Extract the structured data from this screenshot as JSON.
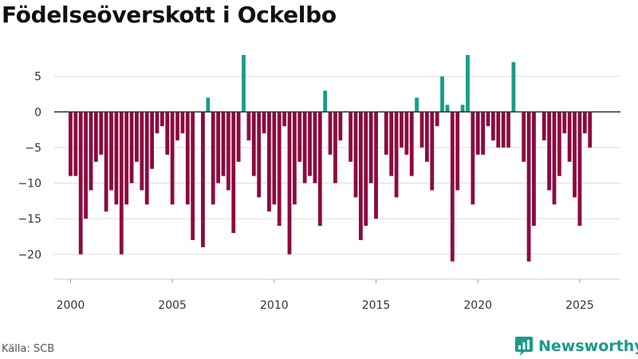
{
  "chart_data": {
    "type": "bar",
    "title": "Födelseöverskott i Ockelbo",
    "source": "Källa: SCB",
    "brand": "Newsworthy",
    "xlabel": "",
    "ylabel": "",
    "ylim": [
      -23.5,
      9
    ],
    "xlim": [
      1999.2,
      2027
    ],
    "yticks": [
      5,
      0,
      -5,
      -10,
      -15,
      -20
    ],
    "ytick_labels": [
      "5",
      "0",
      "−5",
      "−10",
      "−15",
      "−20"
    ],
    "xticks": [
      2000,
      2005,
      2010,
      2015,
      2020,
      2025
    ],
    "xtick_labels": [
      "2000",
      "2005",
      "2010",
      "2015",
      "2020",
      "2025"
    ],
    "colors": {
      "positive": "#1a9b8a",
      "negative": "#8c0a3f",
      "zero_line": "#333333",
      "grid": "#dddddd"
    },
    "series": [
      {
        "name": "Födelseöverskott",
        "start_year": 2000,
        "step": 0.25,
        "values": [
          -9,
          -9,
          -20,
          -15,
          -11,
          -7,
          -6,
          -14,
          -11,
          -13,
          -20,
          -13,
          -10,
          -7,
          -11,
          -13,
          -8,
          -3,
          -2,
          -6,
          -13,
          -4,
          -3,
          -13,
          -18,
          0,
          -19,
          2,
          -13,
          -10,
          -9,
          -11,
          -17,
          -7,
          8,
          -4,
          -9,
          -12,
          -3,
          -14,
          -13,
          -16,
          -2,
          -20,
          -13,
          -7,
          -10,
          -9,
          -10,
          -16,
          3,
          -6,
          -10,
          -4,
          0,
          -7,
          -12,
          -18,
          -16,
          -10,
          -15,
          0,
          -6,
          -9,
          -12,
          -5,
          -6,
          -9,
          2,
          -5,
          -7,
          -11,
          -2,
          5,
          1,
          -21,
          -11,
          1,
          8,
          -13,
          -6,
          -6,
          -2,
          -4,
          -5,
          -5,
          -5,
          7,
          0,
          -7,
          -21,
          -16,
          0,
          -4,
          -11,
          -13,
          -9,
          -3,
          -7,
          -12,
          -16,
          -3,
          -5
        ]
      }
    ]
  }
}
